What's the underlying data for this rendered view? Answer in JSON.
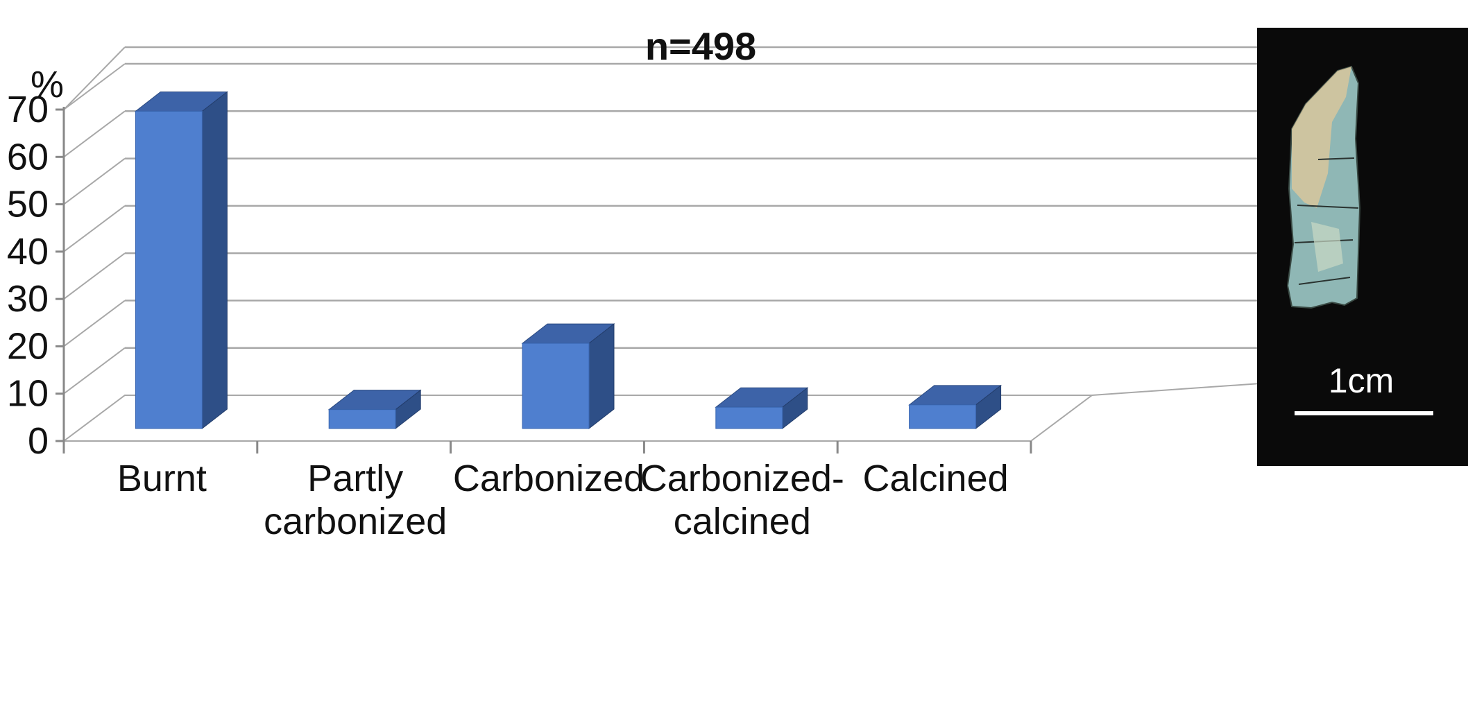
{
  "chart_data": {
    "type": "bar",
    "title": "n=498",
    "ylabel": "%",
    "xlabel": "",
    "categories": [
      [
        "Burnt"
      ],
      [
        "Partly",
        "carbonized"
      ],
      [
        "Carbonized"
      ],
      [
        "Carbonized-",
        "calcined"
      ],
      [
        "Calcined"
      ]
    ],
    "values": [
      67,
      4,
      18,
      4.5,
      5
    ],
    "ylim": [
      0,
      70
    ],
    "yticks": [
      "0",
      "10",
      "20",
      "30",
      "40",
      "50",
      "60",
      "70"
    ],
    "grid": true,
    "style": "3d-column",
    "colors": {
      "front": "#4f7fcf",
      "side": "#2e4f87",
      "top": "#3d63a8",
      "grid": "#a8a8a8",
      "axis": "#888888"
    }
  },
  "inset": {
    "scale_label": "1cm",
    "background": "#0a0a0a",
    "bar_color": "#ffffff",
    "fragment_colors": [
      "#c9d9c4",
      "#8fb7b5",
      "#d8c79c"
    ]
  }
}
